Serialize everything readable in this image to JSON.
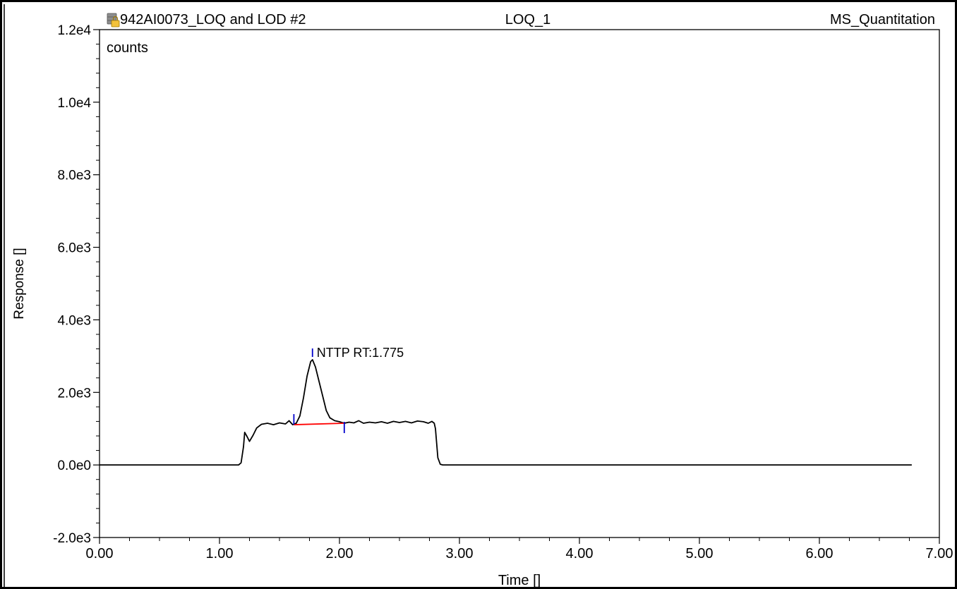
{
  "header": {
    "sample_name": "942AI0073_LOQ and LOD #2",
    "injection": "LOQ_1",
    "method": "MS_Quantitation",
    "icon": "locked-database-icon"
  },
  "chart_data": {
    "type": "line",
    "units_label": "counts",
    "xlabel": "Time []",
    "ylabel": "Response []",
    "xlim": [
      0,
      7
    ],
    "ylim": [
      -2000,
      12000
    ],
    "x_ticks": [
      0,
      1,
      2,
      3,
      4,
      5,
      6,
      7
    ],
    "x_tick_labels": [
      "0.00",
      "1.00",
      "2.00",
      "3.00",
      "4.00",
      "5.00",
      "6.00",
      "7.00"
    ],
    "y_ticks": [
      -2000,
      0,
      2000,
      4000,
      6000,
      8000,
      10000,
      12000
    ],
    "y_tick_labels": [
      "-2.0e3",
      "0.0e0",
      "2.0e3",
      "4.0e3",
      "6.0e3",
      "8.0e3",
      "1.0e4",
      "1.2e4"
    ],
    "series": [
      {
        "color": "#000000",
        "points": [
          [
            0.0,
            0
          ],
          [
            1.16,
            0
          ],
          [
            1.18,
            60
          ],
          [
            1.2,
            500
          ],
          [
            1.21,
            900
          ],
          [
            1.23,
            780
          ],
          [
            1.25,
            650
          ],
          [
            1.28,
            820
          ],
          [
            1.31,
            1020
          ],
          [
            1.35,
            1120
          ],
          [
            1.4,
            1150
          ],
          [
            1.45,
            1110
          ],
          [
            1.5,
            1160
          ],
          [
            1.55,
            1130
          ],
          [
            1.58,
            1220
          ],
          [
            1.61,
            1110
          ],
          [
            1.64,
            1150
          ],
          [
            1.67,
            1350
          ],
          [
            1.7,
            1850
          ],
          [
            1.73,
            2450
          ],
          [
            1.76,
            2850
          ],
          [
            1.775,
            2900
          ],
          [
            1.8,
            2700
          ],
          [
            1.83,
            2300
          ],
          [
            1.86,
            1900
          ],
          [
            1.89,
            1500
          ],
          [
            1.92,
            1300
          ],
          [
            1.96,
            1220
          ],
          [
            2.0,
            1190
          ],
          [
            2.04,
            1150
          ],
          [
            2.08,
            1180
          ],
          [
            2.12,
            1160
          ],
          [
            2.16,
            1220
          ],
          [
            2.2,
            1150
          ],
          [
            2.25,
            1180
          ],
          [
            2.3,
            1160
          ],
          [
            2.35,
            1190
          ],
          [
            2.4,
            1150
          ],
          [
            2.45,
            1200
          ],
          [
            2.5,
            1170
          ],
          [
            2.55,
            1200
          ],
          [
            2.6,
            1160
          ],
          [
            2.65,
            1210
          ],
          [
            2.7,
            1190
          ],
          [
            2.74,
            1150
          ],
          [
            2.77,
            1200
          ],
          [
            2.79,
            1150
          ],
          [
            2.8,
            1000
          ],
          [
            2.81,
            600
          ],
          [
            2.82,
            200
          ],
          [
            2.84,
            20
          ],
          [
            2.86,
            0
          ],
          [
            6.77,
            0
          ]
        ]
      }
    ],
    "baseline": {
      "color": "#ff0000",
      "start": [
        1.62,
        1110
      ],
      "end": [
        2.04,
        1150
      ]
    },
    "peak": {
      "label": "NTTP  RT:1.775",
      "rt": 1.775,
      "apex": 2900,
      "marker_color": "#0000cc"
    }
  }
}
